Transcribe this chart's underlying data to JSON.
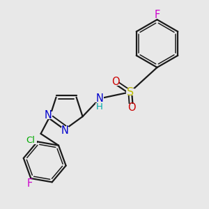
{
  "bg_color": "#e8e8e8",
  "bond_color": "#1a1a1a",
  "bond_width": 1.6,
  "font_size": 9.5,
  "atom_colors": {
    "C": "#1a1a1a",
    "N": "#0000cc",
    "O": "#cc0000",
    "S": "#bbbb00",
    "F": "#cc00cc",
    "Cl": "#00aa00",
    "H": "#00aaaa"
  },
  "figsize": [
    3.0,
    3.0
  ],
  "dpi": 100
}
